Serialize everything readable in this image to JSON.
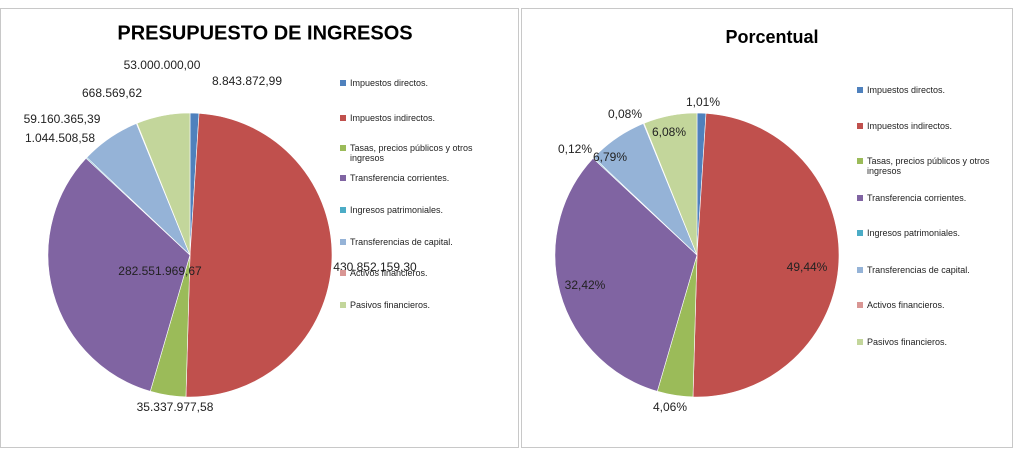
{
  "chart_data": [
    {
      "type": "pie",
      "title": "PRESUPUESTO DE INGRESOS",
      "categories": [
        "Impuestos directos.",
        "Impuestos indirectos.",
        "Tasas, precios públicos y otros ingresos",
        "Transferencia corrientes.",
        "Ingresos patrimoniales.",
        "Transferencias de capital.",
        "Activos financieros.",
        "Pasivos financieros."
      ],
      "values": [
        8843872.99,
        430852159.3,
        35337977.58,
        282551969.67,
        1044508.58,
        59160365.39,
        668569.62,
        53000000.0
      ],
      "value_labels": [
        "8.843.872,99",
        "430.852.159,30",
        "35.337.977,58",
        "282.551.969,67",
        "1.044.508,58",
        "59.160.365,39",
        "668.569,62",
        "53.000.000,00"
      ],
      "colors": [
        "#4f81bd",
        "#c0504d",
        "#9bbb59",
        "#8064a2",
        "#4bacc6",
        "#95b3d7",
        "#d99694",
        "#c3d69b"
      ]
    },
    {
      "type": "pie",
      "title": "Porcentual",
      "categories": [
        "Impuestos directos.",
        "Impuestos indirectos.",
        "Tasas, precios públicos y otros ingresos",
        "Transferencia corrientes.",
        "Ingresos patrimoniales.",
        "Transferencias de capital.",
        "Activos financieros.",
        "Pasivos financieros."
      ],
      "values": [
        1.01,
        49.44,
        4.06,
        32.42,
        0.12,
        6.79,
        0.08,
        6.08
      ],
      "value_labels": [
        "1,01%",
        "49,44%",
        "4,06%",
        "32,42%",
        "0,12%",
        "6,79%",
        "0,08%",
        "6,08%"
      ],
      "colors": [
        "#4f81bd",
        "#c0504d",
        "#9bbb59",
        "#8064a2",
        "#4bacc6",
        "#95b3d7",
        "#d99694",
        "#c3d69b"
      ]
    }
  ]
}
